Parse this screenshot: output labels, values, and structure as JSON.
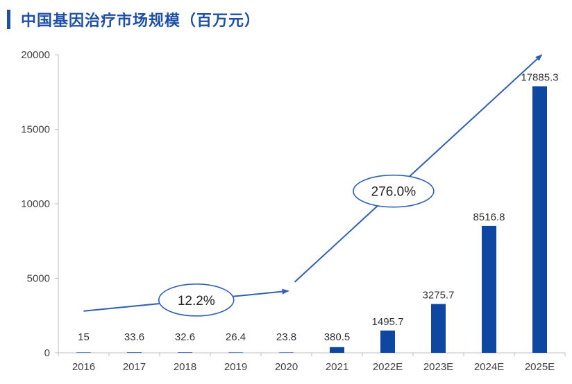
{
  "title": "中国基因治疗市场规模（百万元）",
  "chart_data": {
    "type": "bar",
    "title": "中国基因治疗市场规模（百万元）",
    "xlabel": "",
    "ylabel": "",
    "categories": [
      "2016",
      "2017",
      "2018",
      "2019",
      "2020",
      "2021",
      "2022E",
      "2023E",
      "2024E",
      "2025E"
    ],
    "values": [
      15,
      33.6,
      32.6,
      26.4,
      23.8,
      380.5,
      1495.7,
      3275.7,
      8516.8,
      17885.3
    ],
    "value_labels": [
      "15",
      "33.6",
      "32.6",
      "26.4",
      "23.8",
      "380.5",
      "1495.7",
      "3275.7",
      "8516.8",
      "17885.3"
    ],
    "ylim": [
      0,
      20000
    ],
    "yticks": [
      0,
      5000,
      10000,
      15000,
      20000
    ],
    "grid": false,
    "legend": "none",
    "bar_color": "#0D47A1",
    "annotations": [
      {
        "text": "12.2%",
        "from_category": "2016",
        "to_category": "2020",
        "from_value": 2800,
        "to_value": 4150
      },
      {
        "text": "276.0%",
        "from_category": "2020",
        "to_category": "2025E",
        "from_value": 4750,
        "to_value": 20000
      }
    ]
  }
}
